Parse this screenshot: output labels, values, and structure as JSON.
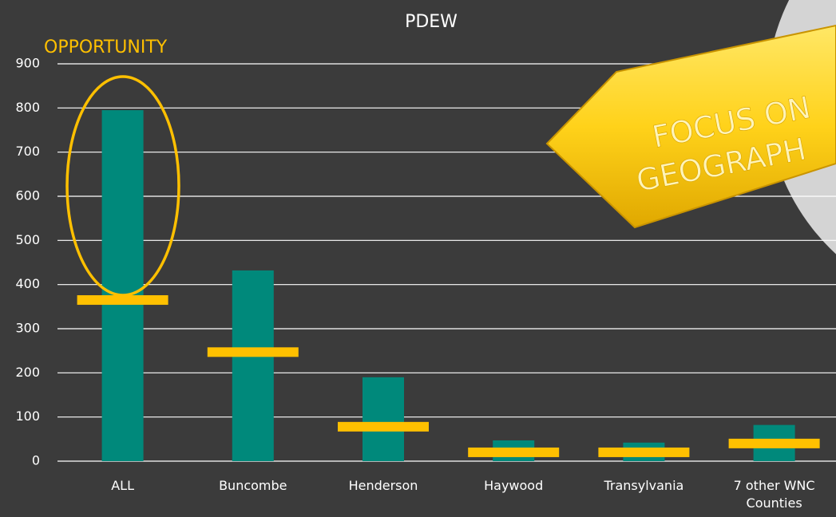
{
  "chart_data": {
    "type": "bar",
    "title": "PDEW",
    "annotations": [
      "OPPORTUNITY",
      "FOCUS ON",
      "GEOGRAPH"
    ],
    "categories": [
      "ALL",
      "Buncombe",
      "Henderson",
      "Haywood",
      "Transylvania",
      "7 other WNC Counties"
    ],
    "series": [
      {
        "color": "#00897b",
        "values": [
          795,
          432,
          190,
          47,
          42,
          82
        ]
      },
      {
        "color": "#ffc000",
        "marker": "dash",
        "values": [
          365,
          247,
          78,
          20,
          20,
          40
        ]
      }
    ],
    "ylim": [
      0,
      900
    ],
    "yticks": [
      0,
      100,
      200,
      300,
      400,
      500,
      600,
      700,
      800,
      900
    ],
    "grid": true
  }
}
